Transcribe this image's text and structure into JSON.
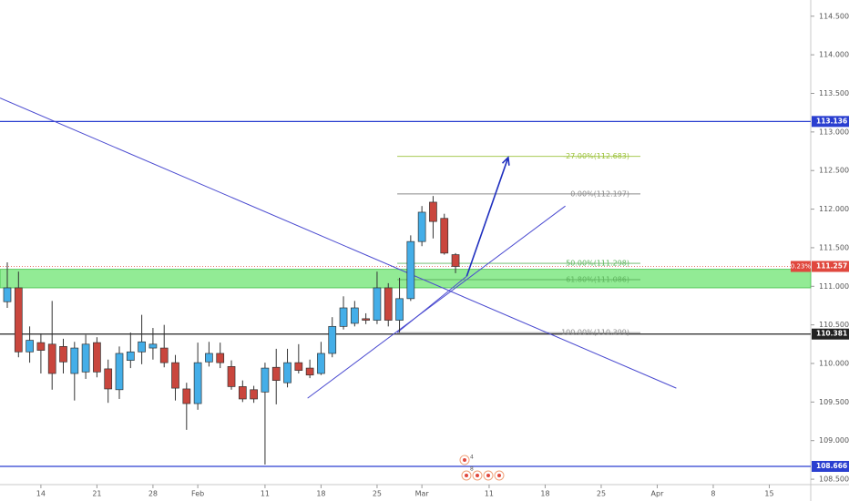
{
  "chart_data": {
    "type": "candlestick",
    "up_color": "#44aee8",
    "down_color": "#c9463d",
    "x": [
      0,
      1,
      2,
      3,
      4,
      5,
      6,
      7,
      8,
      9,
      10,
      11,
      12,
      13,
      14,
      15,
      16,
      17,
      18,
      19,
      20,
      21,
      22,
      23,
      24,
      25,
      26,
      27,
      28,
      29,
      30,
      31,
      32,
      33,
      34,
      35,
      36,
      37,
      38,
      39,
      40
    ],
    "open": [
      110.8,
      110.98,
      110.15,
      110.27,
      110.25,
      110.22,
      109.87,
      109.89,
      110.27,
      109.93,
      109.66,
      110.04,
      110.15,
      110.2,
      110.2,
      110.01,
      109.67,
      109.48,
      110.02,
      110.13,
      109.96,
      109.7,
      109.66,
      109.63,
      109.95,
      109.75,
      110.01,
      109.94,
      109.87,
      110.13,
      110.48,
      110.52,
      110.58,
      110.56,
      110.98,
      110.56,
      110.84,
      111.58,
      112.09,
      111.88,
      111.41
    ],
    "high": [
      111.31,
      111.19,
      110.48,
      110.39,
      110.81,
      110.32,
      110.28,
      110.37,
      110.34,
      110.05,
      110.22,
      110.4,
      110.63,
      110.46,
      110.5,
      110.11,
      109.75,
      110.27,
      110.28,
      110.27,
      110.04,
      109.78,
      109.71,
      110.01,
      110.19,
      110.19,
      110.25,
      110.05,
      110.28,
      110.6,
      110.87,
      110.81,
      110.65,
      111.19,
      111.04,
      111.11,
      111.66,
      112.04,
      112.17,
      111.94,
      111.43
    ],
    "low": [
      110.72,
      110.08,
      110.01,
      109.87,
      109.66,
      109.87,
      109.52,
      109.8,
      109.82,
      109.49,
      109.54,
      109.94,
      109.99,
      110.05,
      109.95,
      109.52,
      109.14,
      109.4,
      109.96,
      109.94,
      109.66,
      109.5,
      109.49,
      108.69,
      109.47,
      109.69,
      109.87,
      109.81,
      109.85,
      110.08,
      110.44,
      110.48,
      110.51,
      110.51,
      110.48,
      110.4,
      110.81,
      111.52,
      111.62,
      111.41,
      111.17
    ],
    "close": [
      110.98,
      110.15,
      110.3,
      110.17,
      109.87,
      110.02,
      110.2,
      110.25,
      109.89,
      109.67,
      110.13,
      110.15,
      110.28,
      110.25,
      110.01,
      109.68,
      109.48,
      110.01,
      110.13,
      110.01,
      109.7,
      109.54,
      109.54,
      109.94,
      109.78,
      110.01,
      109.91,
      109.85,
      110.13,
      110.48,
      110.72,
      110.72,
      110.56,
      110.98,
      110.56,
      110.84,
      111.58,
      111.96,
      111.84,
      111.43,
      111.257
    ],
    "xlim": [
      -0.65,
      71.7
    ],
    "ylim": [
      108.43,
      114.71
    ],
    "xticks": [
      {
        "value": 3,
        "label": "14"
      },
      {
        "value": 8,
        "label": "21"
      },
      {
        "value": 13,
        "label": "28"
      },
      {
        "value": 17,
        "label": "Feb"
      },
      {
        "value": 23,
        "label": "11"
      },
      {
        "value": 28,
        "label": "18"
      },
      {
        "value": 33,
        "label": "25"
      },
      {
        "value": 37,
        "label": "Mar"
      },
      {
        "value": 43,
        "label": "11"
      },
      {
        "value": 48,
        "label": "18"
      },
      {
        "value": 53,
        "label": "25"
      },
      {
        "value": 58,
        "label": "Apr"
      },
      {
        "value": 63,
        "label": "8"
      },
      {
        "value": 68,
        "label": "15"
      }
    ],
    "yticks": [
      {
        "value": 108.5,
        "label": "108.500"
      },
      {
        "value": 109,
        "label": "109.000"
      },
      {
        "value": 109.5,
        "label": "109.500"
      },
      {
        "value": 110,
        "label": "110.000"
      },
      {
        "value": 110.5,
        "label": "110.500"
      },
      {
        "value": 111,
        "label": "111.000"
      },
      {
        "value": 111.5,
        "label": "111.500"
      },
      {
        "value": 112,
        "label": "112.000"
      },
      {
        "value": 112.5,
        "label": "112.500"
      },
      {
        "value": 113,
        "label": "113.000"
      },
      {
        "value": 113.5,
        "label": "113.500"
      },
      {
        "value": 114,
        "label": "114.000"
      },
      {
        "value": 114.5,
        "label": "114.500"
      }
    ],
    "hlines": [
      {
        "value": 113.136,
        "color": "#2a3fd0"
      },
      {
        "value": 110.381,
        "color": "#222222"
      },
      {
        "value": 108.666,
        "color": "#2a3fd0"
      }
    ],
    "zone": {
      "from": 110.98,
      "to": 111.22,
      "color": "#7fe882"
    },
    "current_price": {
      "value": 111.257,
      "change": "0.23%",
      "color": "#e0483e"
    },
    "fib_x": [
      34.8,
      56.5
    ],
    "fib_levels": [
      {
        "value": 112.683,
        "label": "-27.00%(112.683)",
        "color": "#9cc23a"
      },
      {
        "value": 112.197,
        "label": "0.00%(112.197)",
        "color": "#8a8a8a"
      },
      {
        "value": 111.298,
        "label": "50.00%(111.298)",
        "color": "#5fb55f"
      },
      {
        "value": 111.086,
        "label": "61.80%(111.086)",
        "color": "#5fb55f"
      },
      {
        "value": 110.399,
        "label": "100.00%(110.399)",
        "color": "#8a8a8a"
      }
    ],
    "trendlines": [
      {
        "x": [
          -0.65,
          59.7
        ],
        "y": [
          113.44,
          109.68
        ],
        "color": "#4a4ad0"
      },
      {
        "x": [
          26.8,
          49.8
        ],
        "y": [
          109.55,
          112.04
        ],
        "color": "#4a4ad0"
      },
      {
        "x": [
          34.8,
          41.0
        ],
        "y": [
          110.4,
          111.13
        ],
        "color": "#4a4ad0"
      }
    ],
    "arrow": {
      "x": [
        41.0,
        44.7
      ],
      "y": [
        111.13,
        112.67
      ],
      "color": "#1f2fbf"
    },
    "event_labels": [
      "4",
      "8"
    ]
  }
}
